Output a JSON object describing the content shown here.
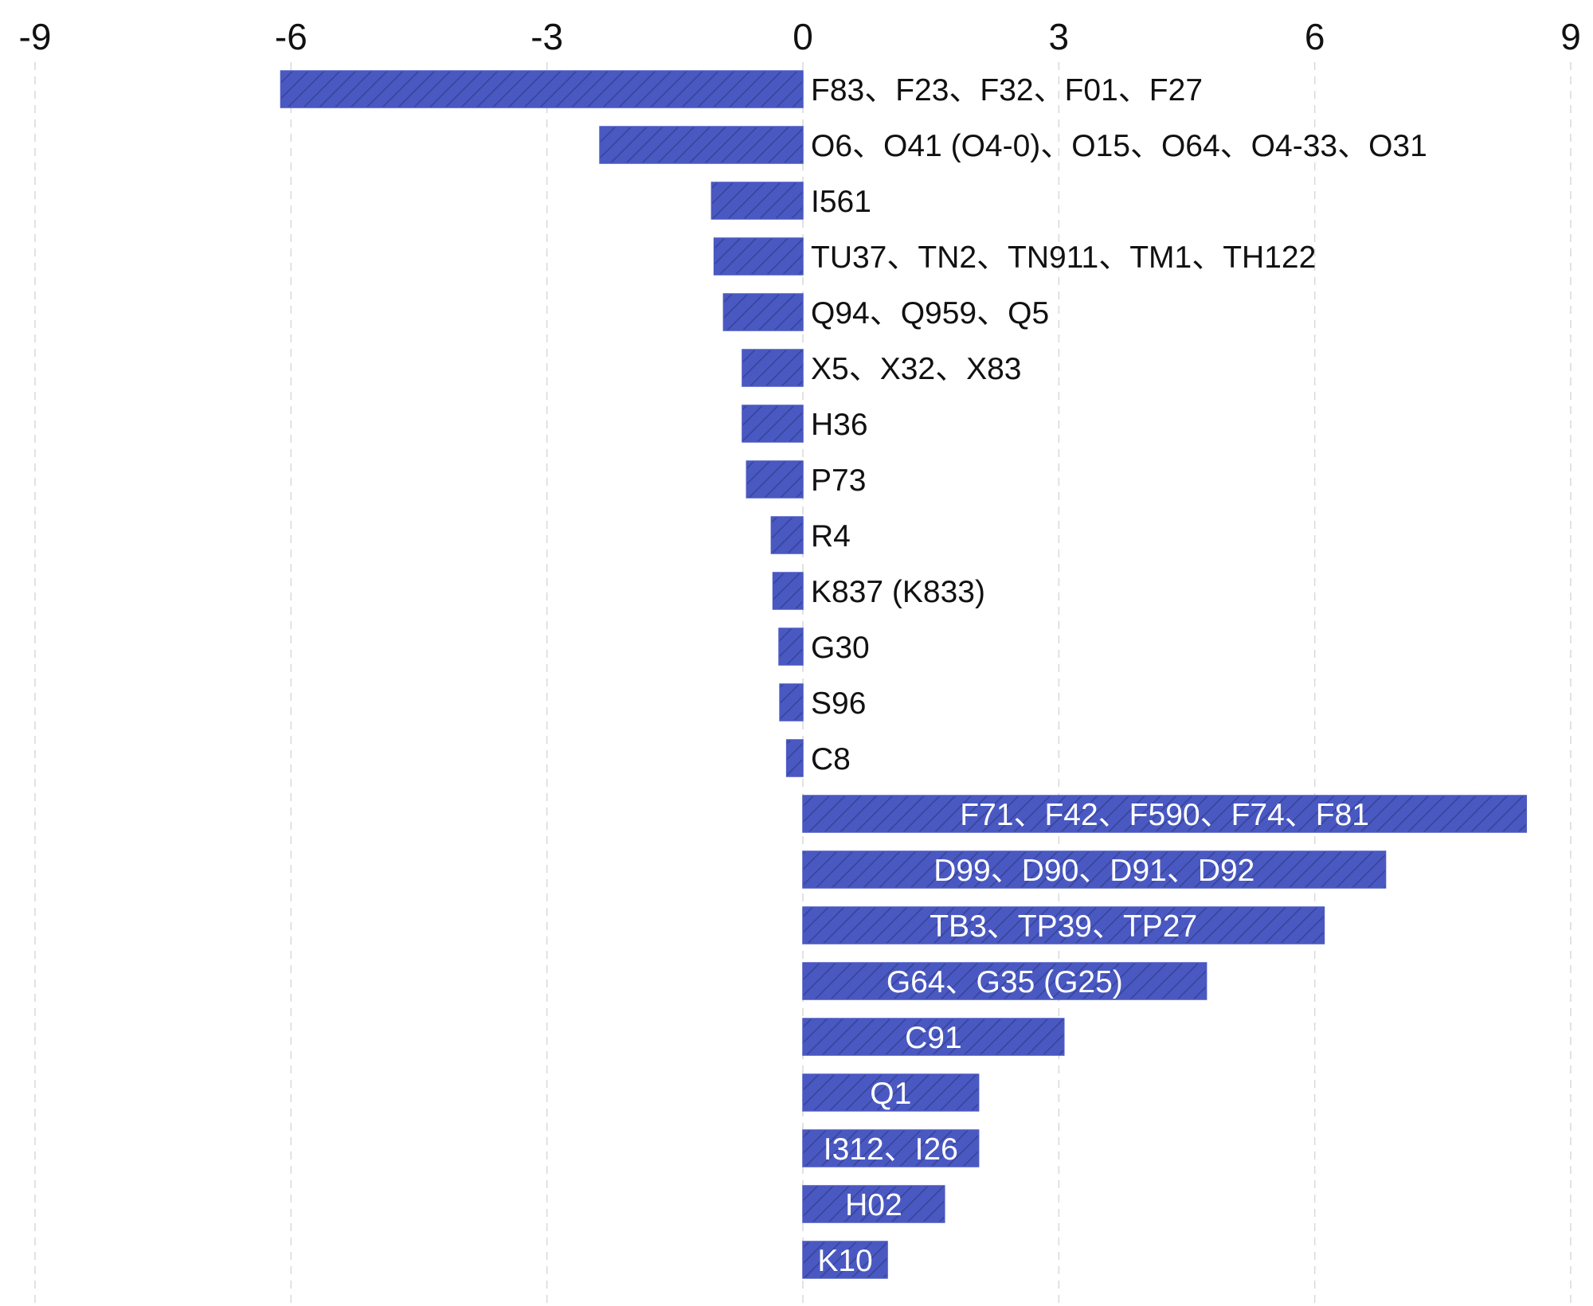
{
  "chart_data": {
    "type": "bar",
    "orientation": "horizontal",
    "title": "",
    "xlabel": "",
    "ylabel": "",
    "xlim": [
      -9,
      9
    ],
    "x_ticks": [
      -9,
      -6,
      -3,
      0,
      3,
      6,
      9
    ],
    "x_tick_labels": [
      "-9",
      "-6",
      "-3",
      "0",
      "3",
      "6",
      "9"
    ],
    "x_axis_position": "top",
    "grid": "vertical dashed",
    "legend": "none",
    "bar_color": "#4A59C2",
    "bar_pattern": "diagonal hatch",
    "categories": [
      "F83、F23、F32、F01、F27",
      "O6、O41 (O4-0)、O15、O64、O4-33、O31",
      "I561",
      "TU37、TN2、TN911、TM1、TH122",
      "Q94、Q959、Q5",
      "X5、X32、X83",
      "H36",
      "P73",
      "R4",
      "K837 (K833)",
      "G30",
      "S96",
      "C8",
      "F71、F42、F590、F74、F81",
      "D99、D90、D91、D92",
      "TB3、TP39、TP27",
      "G64、G35 (G25)",
      "C91",
      "Q1",
      "I312、I26",
      "H02",
      "K10"
    ],
    "values": [
      -6.12,
      -2.38,
      -1.07,
      -1.04,
      -0.93,
      -0.71,
      -0.71,
      -0.66,
      -0.37,
      -0.35,
      -0.28,
      -0.27,
      -0.19,
      8.48,
      6.83,
      6.11,
      4.73,
      3.06,
      2.06,
      2.06,
      1.66,
      0.99
    ]
  }
}
